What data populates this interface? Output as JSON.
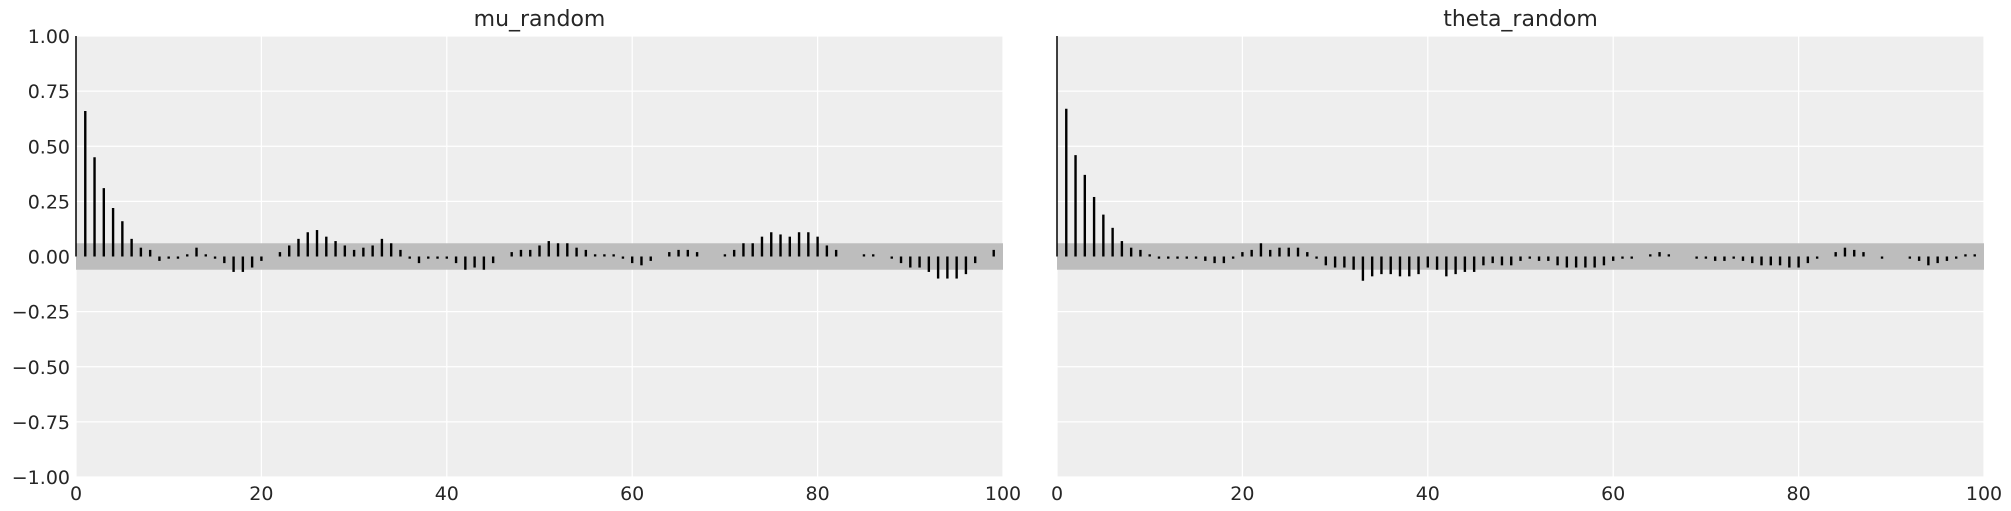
{
  "colors": {
    "panel_bg": "#eeeeee",
    "grid": "#ffffff",
    "band": "#bdbdbd",
    "bar": "#000000",
    "text": "#262626"
  },
  "chart_data": [
    {
      "type": "bar",
      "title": "mu_random",
      "xlabel": "",
      "ylabel": "",
      "xlim": [
        0,
        100
      ],
      "ylim": [
        -1,
        1
      ],
      "x_ticks": [
        0,
        20,
        40,
        60,
        80,
        100
      ],
      "x_tick_labels": [
        "0",
        "20",
        "40",
        "60",
        "80",
        "100"
      ],
      "y_ticks": [
        1,
        0.75,
        0.5,
        0.25,
        0,
        -0.25,
        -0.5,
        -0.75,
        -1
      ],
      "y_tick_labels": [
        "1.00",
        "0.75",
        "0.50",
        "0.25",
        "0.00",
        "−0.25",
        "−0.50",
        "−0.75",
        "−1.00"
      ],
      "confidence_band": [
        -0.06,
        0.06
      ],
      "grid": true,
      "lags": [
        0,
        1,
        2,
        3,
        4,
        5,
        6,
        7,
        8,
        9,
        10,
        11,
        12,
        13,
        14,
        15,
        16,
        17,
        18,
        19,
        20,
        21,
        22,
        23,
        24,
        25,
        26,
        27,
        28,
        29,
        30,
        31,
        32,
        33,
        34,
        35,
        36,
        37,
        38,
        39,
        40,
        41,
        42,
        43,
        44,
        45,
        46,
        47,
        48,
        49,
        50,
        51,
        52,
        53,
        54,
        55,
        56,
        57,
        58,
        59,
        60,
        61,
        62,
        63,
        64,
        65,
        66,
        67,
        68,
        69,
        70,
        71,
        72,
        73,
        74,
        75,
        76,
        77,
        78,
        79,
        80,
        81,
        82,
        83,
        84,
        85,
        86,
        87,
        88,
        89,
        90,
        91,
        92,
        93,
        94,
        95,
        96,
        97,
        98,
        99
      ],
      "values": [
        1.0,
        0.66,
        0.45,
        0.31,
        0.22,
        0.16,
        0.08,
        0.04,
        0.03,
        -0.02,
        -0.01,
        -0.01,
        0.01,
        0.04,
        0.01,
        -0.01,
        -0.03,
        -0.07,
        -0.07,
        -0.05,
        -0.02,
        0.0,
        0.02,
        0.05,
        0.08,
        0.11,
        0.12,
        0.09,
        0.07,
        0.05,
        0.03,
        0.04,
        0.05,
        0.08,
        0.06,
        0.03,
        -0.01,
        -0.03,
        -0.01,
        -0.01,
        -0.01,
        -0.03,
        -0.06,
        -0.05,
        -0.06,
        -0.03,
        0.0,
        0.02,
        0.03,
        0.03,
        0.05,
        0.07,
        0.06,
        0.06,
        0.04,
        0.03,
        0.01,
        0.01,
        0.01,
        -0.01,
        -0.03,
        -0.04,
        -0.02,
        0.0,
        0.02,
        0.03,
        0.03,
        0.02,
        0.0,
        0.0,
        0.01,
        0.03,
        0.06,
        0.06,
        0.09,
        0.11,
        0.1,
        0.09,
        0.11,
        0.11,
        0.09,
        0.05,
        0.03,
        0.0,
        0.0,
        0.01,
        0.01,
        0.0,
        -0.01,
        -0.03,
        -0.05,
        -0.05,
        -0.07,
        -0.1,
        -0.1,
        -0.1,
        -0.08,
        -0.03,
        0.0,
        0.03
      ]
    },
    {
      "type": "bar",
      "title": "theta_random",
      "xlabel": "",
      "ylabel": "",
      "xlim": [
        0,
        100
      ],
      "ylim": [
        -1,
        1
      ],
      "x_ticks": [
        0,
        20,
        40,
        60,
        80,
        100
      ],
      "x_tick_labels": [
        "0",
        "20",
        "40",
        "60",
        "80",
        "100"
      ],
      "confidence_band": [
        -0.06,
        0.06
      ],
      "grid": true,
      "lags": [
        0,
        1,
        2,
        3,
        4,
        5,
        6,
        7,
        8,
        9,
        10,
        11,
        12,
        13,
        14,
        15,
        16,
        17,
        18,
        19,
        20,
        21,
        22,
        23,
        24,
        25,
        26,
        27,
        28,
        29,
        30,
        31,
        32,
        33,
        34,
        35,
        36,
        37,
        38,
        39,
        40,
        41,
        42,
        43,
        44,
        45,
        46,
        47,
        48,
        49,
        50,
        51,
        52,
        53,
        54,
        55,
        56,
        57,
        58,
        59,
        60,
        61,
        62,
        63,
        64,
        65,
        66,
        67,
        68,
        69,
        70,
        71,
        72,
        73,
        74,
        75,
        76,
        77,
        78,
        79,
        80,
        81,
        82,
        83,
        84,
        85,
        86,
        87,
        88,
        89,
        90,
        91,
        92,
        93,
        94,
        95,
        96,
        97,
        98,
        99
      ],
      "values": [
        1.0,
        0.67,
        0.46,
        0.37,
        0.27,
        0.19,
        0.13,
        0.07,
        0.04,
        0.03,
        0.01,
        -0.01,
        -0.01,
        -0.01,
        -0.01,
        -0.01,
        -0.02,
        -0.03,
        -0.03,
        -0.01,
        0.02,
        0.03,
        0.06,
        0.03,
        0.04,
        0.04,
        0.04,
        0.02,
        -0.01,
        -0.04,
        -0.05,
        -0.05,
        -0.06,
        -0.11,
        -0.09,
        -0.08,
        -0.08,
        -0.09,
        -0.09,
        -0.08,
        -0.05,
        -0.06,
        -0.09,
        -0.08,
        -0.07,
        -0.07,
        -0.04,
        -0.03,
        -0.04,
        -0.04,
        -0.02,
        -0.01,
        -0.02,
        -0.02,
        -0.04,
        -0.05,
        -0.05,
        -0.05,
        -0.05,
        -0.04,
        -0.02,
        -0.01,
        -0.01,
        0.0,
        0.01,
        0.02,
        0.01,
        0.0,
        0.0,
        -0.01,
        -0.01,
        -0.02,
        -0.02,
        -0.01,
        -0.02,
        -0.03,
        -0.04,
        -0.04,
        -0.04,
        -0.05,
        -0.05,
        -0.03,
        -0.01,
        0.0,
        0.02,
        0.04,
        0.03,
        0.02,
        0.0,
        -0.01,
        0.0,
        0.0,
        -0.01,
        -0.02,
        -0.04,
        -0.03,
        -0.02,
        -0.01,
        0.01,
        0.01
      ]
    }
  ]
}
